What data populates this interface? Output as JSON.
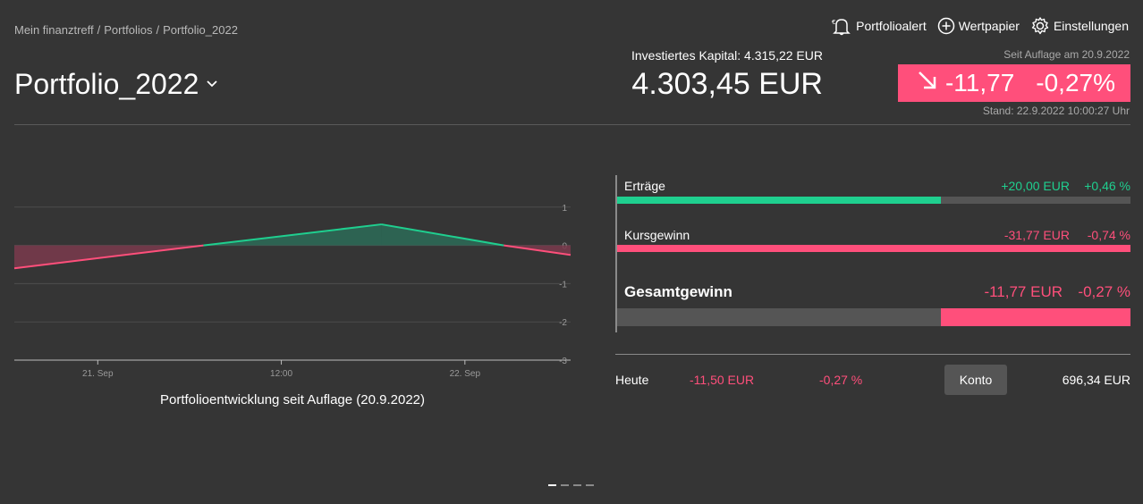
{
  "breadcrumb": {
    "items": [
      "Mein finanztreff",
      "Portfolios",
      "Portfolio_2022"
    ],
    "separator": "/"
  },
  "actions": {
    "alert": "Portfolioalert",
    "security": "Wertpapier",
    "settings": "Einstellungen"
  },
  "portfolio": {
    "title": "Portfolio_2022",
    "invested_label": "Investiertes Kapital: 4.315,22 EUR",
    "total_value": "4.303,45 EUR",
    "since_label": "Seit Auflage am 20.9.2022",
    "change_abs": "-11,77",
    "change_pct": "-0,27%",
    "stand_label": "Stand: 22.9.2022 10:00:27 Uhr"
  },
  "chart_data": {
    "type": "area",
    "title": "Portfolioentwicklung seit Auflage (20.9.2022)",
    "xlabel": "",
    "ylabel": "",
    "x": [
      0,
      0.34,
      0.66,
      0.88,
      1.0
    ],
    "values": [
      -0.6,
      0.0,
      0.55,
      0.0,
      -0.25
    ],
    "x_ticks": [
      {
        "pos": 0.15,
        "label": "21. Sep"
      },
      {
        "pos": 0.48,
        "label": "12:00"
      },
      {
        "pos": 0.81,
        "label": "22. Sep"
      }
    ],
    "y_ticks": [
      1,
      0,
      -1,
      -2,
      -3
    ],
    "ylim": [
      -3,
      2
    ],
    "colors": {
      "positive": "#1fcf8f",
      "negative": "#ff4f7b",
      "pos_fill": "#2b6b57",
      "neg_fill": "#7a3a4c"
    }
  },
  "profit_loss": {
    "income": {
      "label": "Erträge",
      "value": "+20,00 EUR",
      "pct": "+0,46 %",
      "share": 0.63
    },
    "price_gain": {
      "label": "Kursgewinn",
      "value": "-31,77 EUR",
      "pct": "-0,74 %",
      "share": 1.0
    },
    "total": {
      "label": "Gesamtgewinn",
      "value": "-11,77 EUR",
      "pct": "-0,27 %",
      "share": 0.37
    }
  },
  "today": {
    "label": "Heute",
    "value": "-11,50 EUR",
    "pct": "-0,27 %",
    "konto_label": "Konto",
    "konto_value": "696,34 EUR"
  },
  "pager": {
    "count": 4,
    "active": 0
  },
  "colors": {
    "accent_red": "#ff4f7b",
    "accent_green": "#1fcf8f",
    "background": "#353535"
  }
}
